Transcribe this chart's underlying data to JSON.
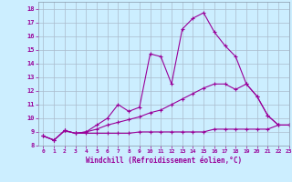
{
  "xlabel": "Windchill (Refroidissement éolien,°C)",
  "background_color": "#cceeff",
  "grid_color": "#aabbcc",
  "line_color": "#990099",
  "xlim": [
    -0.5,
    23
  ],
  "ylim": [
    8,
    18.5
  ],
  "yticks": [
    8,
    9,
    10,
    11,
    12,
    13,
    14,
    15,
    16,
    17,
    18
  ],
  "xticks": [
    0,
    1,
    2,
    3,
    4,
    5,
    6,
    7,
    8,
    9,
    10,
    11,
    12,
    13,
    14,
    15,
    16,
    17,
    18,
    19,
    20,
    21,
    22,
    23
  ],
  "series": [
    [
      8.7,
      8.4,
      9.1,
      8.9,
      8.9,
      8.9,
      8.9,
      8.9,
      8.9,
      9.0,
      9.0,
      9.0,
      9.0,
      9.0,
      9.0,
      9.0,
      9.2,
      9.2,
      9.2,
      9.2,
      9.2,
      9.2,
      9.5,
      9.5
    ],
    [
      8.7,
      8.4,
      9.1,
      8.9,
      9.0,
      9.2,
      9.5,
      9.7,
      9.9,
      10.1,
      10.4,
      10.6,
      11.0,
      11.4,
      11.8,
      12.2,
      12.5,
      12.5,
      12.1,
      12.5,
      11.6,
      10.2,
      9.5,
      9.5
    ],
    [
      8.7,
      8.4,
      9.1,
      8.9,
      9.0,
      9.5,
      10.0,
      11.0,
      10.5,
      10.8,
      14.7,
      14.5,
      12.5,
      16.5,
      17.3,
      17.7,
      16.3,
      15.3,
      14.5,
      12.5,
      11.6,
      10.2,
      9.5,
      9.5
    ]
  ]
}
